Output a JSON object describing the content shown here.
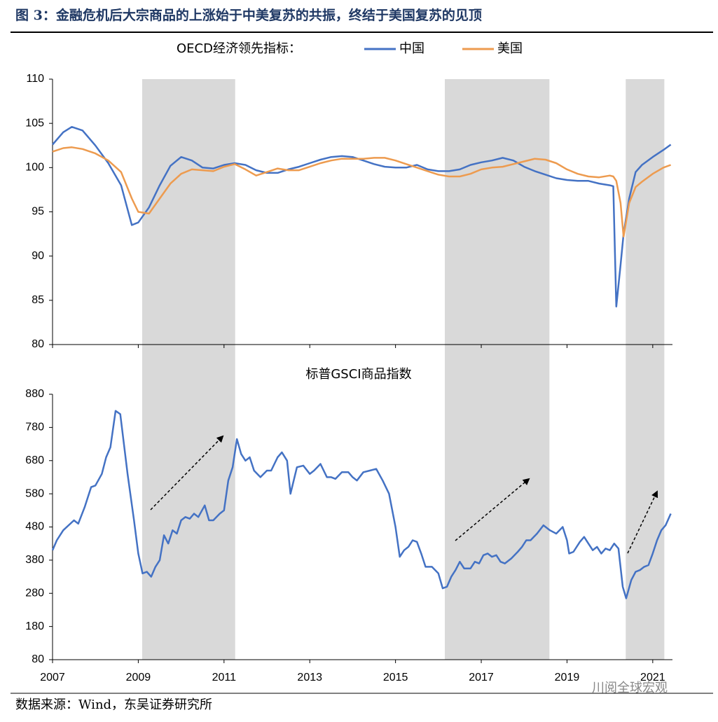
{
  "header": {
    "title": "图 3：金融危机后大宗商品的上涨始于中美复苏的共振，终结于美国复苏的见顶"
  },
  "footer": {
    "source": "数据来源：Wind，东吴证券研究所",
    "watermark": "川阅全球宏观"
  },
  "chart_data": [
    {
      "type": "line",
      "legend_title": "OECD经济领先指标：",
      "x": [
        2007.0,
        2007.25,
        2007.45,
        2007.7,
        2008.0,
        2008.3,
        2008.6,
        2008.85,
        2009.0,
        2009.25,
        2009.5,
        2009.75,
        2010.0,
        2010.25,
        2010.5,
        2010.75,
        2011.0,
        2011.25,
        2011.5,
        2011.75,
        2012.0,
        2012.25,
        2012.5,
        2012.75,
        2013.0,
        2013.25,
        2013.5,
        2013.75,
        2014.0,
        2014.25,
        2014.5,
        2014.75,
        2015.0,
        2015.25,
        2015.5,
        2015.75,
        2016.0,
        2016.25,
        2016.5,
        2016.75,
        2017.0,
        2017.25,
        2017.5,
        2017.75,
        2018.0,
        2018.25,
        2018.5,
        2018.75,
        2019.0,
        2019.25,
        2019.5,
        2019.75,
        2020.0,
        2020.08,
        2020.15,
        2020.25,
        2020.32,
        2020.45,
        2020.6,
        2020.75,
        2021.0,
        2021.25,
        2021.42
      ],
      "series": [
        {
          "name": "中国",
          "color": "#4472c4",
          "values": [
            102.6,
            104.0,
            104.6,
            104.2,
            102.5,
            100.5,
            98.0,
            93.5,
            93.8,
            95.5,
            98.0,
            100.2,
            101.2,
            100.8,
            100.0,
            99.9,
            100.3,
            100.5,
            100.3,
            99.7,
            99.4,
            99.4,
            99.8,
            100.1,
            100.5,
            100.9,
            101.2,
            101.3,
            101.2,
            100.8,
            100.4,
            100.1,
            100.0,
            100.0,
            100.3,
            99.8,
            99.6,
            99.6,
            99.8,
            100.3,
            100.6,
            100.8,
            101.1,
            100.8,
            100.1,
            99.6,
            99.2,
            98.8,
            98.6,
            98.5,
            98.5,
            98.2,
            98.0,
            97.9,
            84.3,
            89.0,
            92.5,
            96.5,
            99.5,
            100.3,
            101.2,
            102.0,
            102.6
          ]
        },
        {
          "name": "美国",
          "color": "#ed9b4f",
          "values": [
            101.8,
            102.2,
            102.3,
            102.1,
            101.6,
            100.8,
            99.5,
            96.5,
            95.0,
            94.8,
            96.5,
            98.2,
            99.3,
            99.8,
            99.7,
            99.6,
            100.1,
            100.4,
            99.8,
            99.1,
            99.5,
            99.9,
            99.7,
            99.7,
            100.1,
            100.5,
            100.8,
            101.0,
            101.0,
            101.0,
            101.1,
            101.1,
            100.8,
            100.4,
            100.0,
            99.6,
            99.2,
            99.0,
            99.0,
            99.3,
            99.8,
            100.0,
            100.1,
            100.4,
            100.7,
            101.0,
            100.9,
            100.5,
            99.8,
            99.3,
            99.0,
            98.9,
            99.1,
            99.0,
            98.5,
            96.0,
            92.2,
            96.0,
            97.8,
            98.4,
            99.3,
            100.0,
            100.3
          ]
        }
      ],
      "xlim": [
        2007,
        2021.46
      ],
      "ylim": [
        80,
        110
      ],
      "yticks": [
        80,
        85,
        90,
        95,
        100,
        105,
        110
      ]
    },
    {
      "type": "line",
      "title": "标普GSCI商品指数",
      "x": [
        2007.0,
        2007.1,
        2007.25,
        2007.5,
        2007.6,
        2007.75,
        2007.9,
        2008.0,
        2008.15,
        2008.25,
        2008.35,
        2008.47,
        2008.58,
        2008.75,
        2008.9,
        2009.0,
        2009.1,
        2009.2,
        2009.3,
        2009.4,
        2009.5,
        2009.6,
        2009.7,
        2009.8,
        2009.9,
        2010.0,
        2010.1,
        2010.2,
        2010.3,
        2010.4,
        2010.55,
        2010.65,
        2010.75,
        2010.9,
        2011.0,
        2011.1,
        2011.2,
        2011.3,
        2011.4,
        2011.5,
        2011.6,
        2011.7,
        2011.85,
        2012.0,
        2012.1,
        2012.25,
        2012.35,
        2012.47,
        2012.55,
        2012.7,
        2012.85,
        2013.0,
        2013.1,
        2013.25,
        2013.4,
        2013.5,
        2013.6,
        2013.75,
        2013.9,
        2014.0,
        2014.1,
        2014.25,
        2014.4,
        2014.55,
        2014.7,
        2014.85,
        2015.0,
        2015.1,
        2015.2,
        2015.3,
        2015.4,
        2015.5,
        2015.6,
        2015.7,
        2015.85,
        2016.0,
        2016.1,
        2016.2,
        2016.3,
        2016.4,
        2016.5,
        2016.6,
        2016.75,
        2016.85,
        2016.95,
        2017.05,
        2017.15,
        2017.25,
        2017.35,
        2017.45,
        2017.55,
        2017.7,
        2017.85,
        2017.95,
        2018.05,
        2018.15,
        2018.3,
        2018.45,
        2018.6,
        2018.75,
        2018.9,
        2019.0,
        2019.05,
        2019.15,
        2019.3,
        2019.4,
        2019.5,
        2019.6,
        2019.7,
        2019.8,
        2019.9,
        2020.0,
        2020.1,
        2020.2,
        2020.3,
        2020.38,
        2020.5,
        2020.6,
        2020.7,
        2020.8,
        2020.9,
        2021.0,
        2021.1,
        2021.2,
        2021.3,
        2021.42
      ],
      "series": [
        {
          "name": "标普GSCI",
          "color": "#4472c4",
          "values": [
            410,
            440,
            470,
            500,
            490,
            540,
            600,
            605,
            640,
            690,
            720,
            830,
            820,
            640,
            500,
            400,
            340,
            345,
            330,
            360,
            380,
            455,
            430,
            470,
            460,
            500,
            510,
            505,
            520,
            510,
            545,
            500,
            500,
            520,
            530,
            620,
            660,
            745,
            700,
            680,
            690,
            650,
            630,
            650,
            650,
            690,
            705,
            680,
            580,
            660,
            665,
            640,
            650,
            670,
            630,
            630,
            625,
            645,
            645,
            630,
            620,
            645,
            650,
            655,
            620,
            580,
            480,
            390,
            410,
            420,
            440,
            435,
            400,
            360,
            360,
            340,
            295,
            300,
            330,
            350,
            375,
            355,
            355,
            375,
            370,
            395,
            400,
            390,
            395,
            375,
            370,
            385,
            405,
            420,
            440,
            440,
            460,
            485,
            470,
            460,
            480,
            440,
            400,
            405,
            435,
            450,
            430,
            410,
            420,
            400,
            415,
            410,
            430,
            415,
            300,
            265,
            320,
            345,
            350,
            360,
            365,
            400,
            440,
            470,
            485,
            520
          ]
        }
      ],
      "xlim": [
        2007,
        2021.46
      ],
      "ylim": [
        80,
        880
      ],
      "yticks": [
        80,
        180,
        280,
        380,
        480,
        580,
        680,
        780,
        880
      ],
      "xticks": [
        2007,
        2009,
        2011,
        2013,
        2015,
        2017,
        2019,
        2021
      ],
      "shaded_periods": [
        [
          2009.09,
          2011.26
        ],
        [
          2016.15,
          2018.59
        ],
        [
          2020.37,
          2021.27
        ]
      ],
      "shade_color": "#d9d9d9"
    }
  ]
}
